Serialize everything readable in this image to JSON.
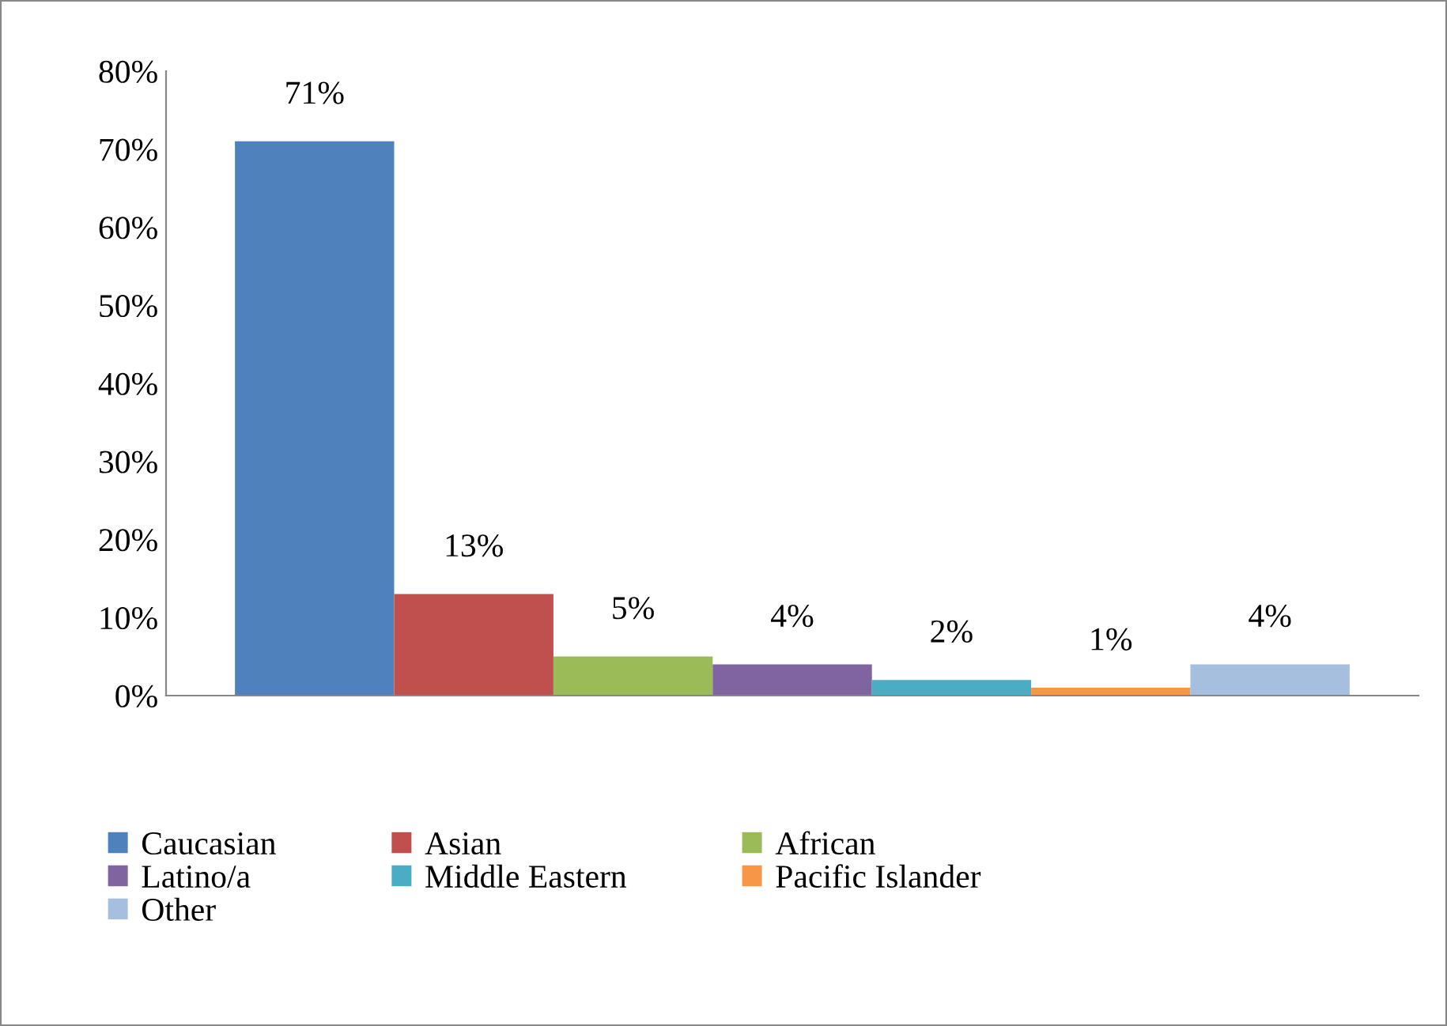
{
  "chart_data": {
    "type": "bar",
    "categories": [
      null
    ],
    "series": [
      {
        "name": "Caucasian",
        "color": "#4f81bd",
        "values": [
          71
        ],
        "value_labels": [
          "71%"
        ]
      },
      {
        "name": "Asian",
        "color": "#c0504d",
        "values": [
          13
        ],
        "value_labels": [
          "13%"
        ]
      },
      {
        "name": "African",
        "color": "#9bbb59",
        "values": [
          5
        ],
        "value_labels": [
          "5%"
        ]
      },
      {
        "name": "Latino/a",
        "color": "#8064a2",
        "values": [
          4
        ],
        "value_labels": [
          "4%"
        ]
      },
      {
        "name": "Middle Eastern",
        "color": "#4bacc6",
        "values": [
          2
        ],
        "value_labels": [
          "2%"
        ]
      },
      {
        "name": "Pacific Islander",
        "color": "#f79646",
        "values": [
          1
        ],
        "value_labels": [
          "1%"
        ]
      },
      {
        "name": "Other",
        "color": "#a7bfde",
        "values": [
          4
        ],
        "value_labels": [
          "4%"
        ]
      }
    ],
    "ylim": [
      0,
      80
    ],
    "yticks": [
      {
        "value": 0,
        "label": "0%"
      },
      {
        "value": 10,
        "label": "10%"
      },
      {
        "value": 20,
        "label": "20%"
      },
      {
        "value": 30,
        "label": "30%"
      },
      {
        "value": 40,
        "label": "40%"
      },
      {
        "value": 50,
        "label": "50%"
      },
      {
        "value": 60,
        "label": "60%"
      },
      {
        "value": 70,
        "label": "70%"
      },
      {
        "value": 80,
        "label": "80%"
      }
    ],
    "grid": false,
    "legend": "bottom",
    "tick_labels": "y"
  }
}
